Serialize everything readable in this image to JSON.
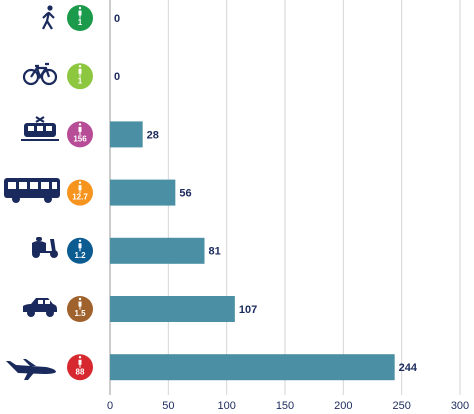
{
  "chart_data": {
    "type": "bar",
    "orientation": "horizontal",
    "categories": [
      null,
      null,
      null,
      null,
      null,
      null,
      null
    ],
    "values": [
      0,
      0,
      28,
      56,
      81,
      107,
      244
    ],
    "color": "#4a8fa3",
    "badges": [
      1,
      1,
      156,
      12.7,
      1.2,
      1.5,
      88
    ],
    "badge_colors": [
      "#1a9a4a",
      "#8dc63f",
      "#b84d97",
      "#f7941d",
      "#0d5c91",
      "#a0622d",
      "#d7282f"
    ],
    "xlim": [
      0,
      300
    ],
    "xticks": [
      0,
      50,
      100,
      150,
      200,
      250,
      300
    ],
    "grid": true
  }
}
